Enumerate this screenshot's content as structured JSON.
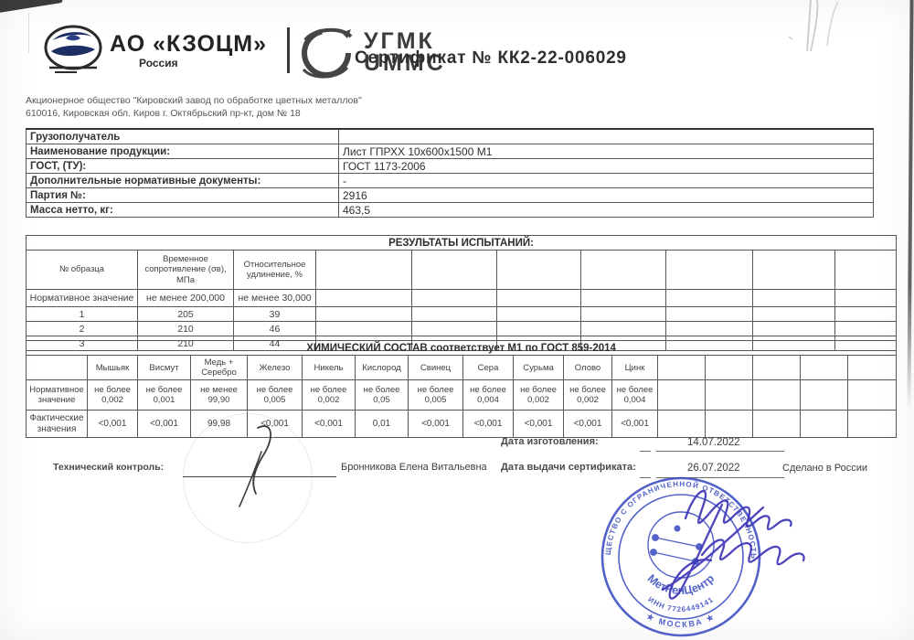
{
  "header": {
    "kzocm_name": "АО «КЗОЦМ»",
    "kzocm_country": "Россия",
    "ugmk_line1": "УГМК",
    "ugmk_line2": "UMMC",
    "certificate_title": "Сертификат № КК2-22-006029"
  },
  "company": {
    "line1": "Акционерное общество \"Кировский завод по обработке цветных металлов\"",
    "line2": "610016, Кировская обл. Киров г. Октябрьский пр-кт, дом № 18"
  },
  "info_table": {
    "rows": [
      {
        "label": "Грузополучатель",
        "value": ""
      },
      {
        "label": "Наименование продукции:",
        "value": "Лист ГПРХХ 10х600х1500  М1"
      },
      {
        "label": "ГОСТ, (ТУ):",
        "value": "ГОСТ 1173-2006"
      },
      {
        "label": "Дополнительные нормативные документы:",
        "value": "-"
      },
      {
        "label": "Партия №:",
        "value": "2916"
      },
      {
        "label": "Масса нетто, кг:",
        "value": "463,5"
      }
    ]
  },
  "results_table": {
    "title": "РЕЗУЛЬТАТЫ ИСПЫТАНИЙ:",
    "columns": [
      "№ образца",
      "Временное сопротивление (σв), МПа",
      "Относительное удлинение, %"
    ],
    "norm_row": {
      "label": "Нормативное значение",
      "values": [
        "не менее 200,000",
        "не менее 30,000"
      ]
    },
    "rows": [
      [
        "1",
        "205",
        "39"
      ],
      [
        "2",
        "210",
        "46"
      ],
      [
        "3",
        "210",
        "44"
      ]
    ],
    "empty_columns": 7
  },
  "chem_table": {
    "title": "ХИМИЧЕСКИЙ СОСТАВ  соответствует М1 по ГОСТ 859-2014",
    "elements": [
      "Мышьяк",
      "Висмут",
      "Медь + Серебро",
      "Железо",
      "Никель",
      "Кислород",
      "Свинец",
      "Сера",
      "Сурьма",
      "Олово",
      "Цинк"
    ],
    "norm_label": "Нормативное\nзначение",
    "norm_values": [
      "не более\n0,002",
      "не более\n0,001",
      "не менее\n99,90",
      "не более\n0,005",
      "не более\n0,002",
      "не более\n0,05",
      "не более\n0,005",
      "не более\n0,004",
      "не более\n0,002",
      "не более\n0,002",
      "не более\n0,004"
    ],
    "fact_label": "Фактические\nзначения",
    "fact_values": [
      "<0,001",
      "<0,001",
      "99,98",
      "<0,001",
      "<0,001",
      "0,01",
      "<0,001",
      "<0,001",
      "<0,001",
      "<0,001",
      "<0,001"
    ],
    "empty_columns": 5
  },
  "footer": {
    "tech_control_label": "Технический контроль:",
    "controller_name": "Бронникова Елена Витальевна",
    "manufacture_date_label": "Дата изготовления:",
    "manufacture_date_value": "14.07.2022",
    "issue_date_label": "Дата выдачи сертификата:",
    "issue_date_value": "26.07.2022",
    "made_in": "Сделано в России"
  },
  "stamp": {
    "ring_text_top": "ОБЩЕСТВО С ОГРАНИЧЕННОЙ ОТВЕТСТВЕННОСТЬЮ",
    "center_name": "МетРенЦентр",
    "inn": "ИНН 7726449141",
    "city": "★ МОСКВА ★",
    "color": "#3547c0"
  },
  "colors": {
    "paper": "#ffffff",
    "ink": "#3a3a3a",
    "table_border": "#565656",
    "stamp_blue": "#3547c0",
    "signature_blue": "#4036b8",
    "logo_navy": "#1d2f63"
  }
}
